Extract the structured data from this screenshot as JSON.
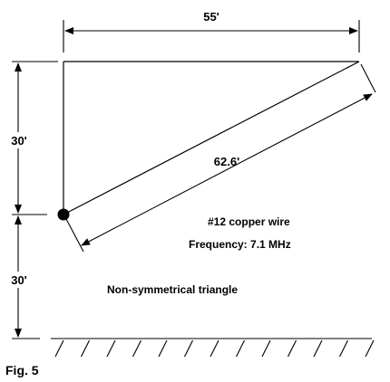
{
  "dimensions": {
    "top_span": "55'",
    "diagonal": "62.6'",
    "upper_height": "30'",
    "lower_height": "30'"
  },
  "notes": {
    "wire": "#12 copper wire",
    "frequency": "Frequency: 7.1 MHz",
    "shape": "Non-symmetrical triangle"
  },
  "figure_label": "Fig. 5",
  "colors": {
    "ink": "#000000",
    "background": "#ffffff"
  }
}
